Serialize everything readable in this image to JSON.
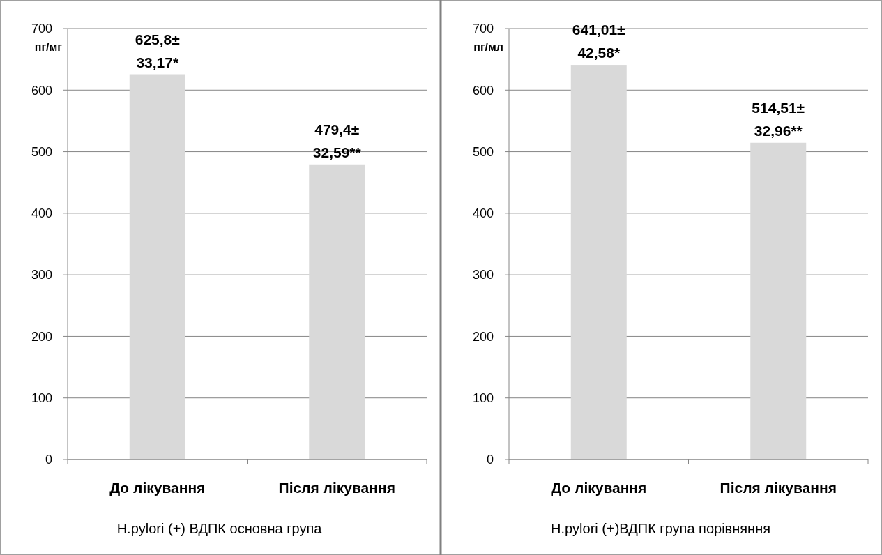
{
  "chart_data": [
    {
      "type": "bar",
      "categories": [
        "До лікування",
        "Після лікування"
      ],
      "values": [
        625.8,
        479.4
      ],
      "color": "#d9d9d9",
      "value_labels": [
        "625,8± 33,17*",
        "479,4± 32,59**"
      ],
      "ylabel": "пг/мг",
      "xlabel": "H.pylori (+) ВДПК основна група",
      "ylim": [
        0,
        700
      ],
      "yticks": [
        0,
        100,
        200,
        300,
        400,
        500,
        600,
        700
      ],
      "grid": "y"
    },
    {
      "type": "bar",
      "categories": [
        "До лікування",
        "Після лікування"
      ],
      "values": [
        641.01,
        514.51
      ],
      "color": "#d9d9d9",
      "value_labels": [
        "641,01± 42,58*",
        "514,51± 32,96**"
      ],
      "ylabel": "пг/мл",
      "xlabel": "H.pylori (+)ВДПК група порівняння",
      "ylim": [
        0,
        700
      ],
      "yticks": [
        0,
        100,
        200,
        300,
        400,
        500,
        600,
        700
      ],
      "grid": "y"
    }
  ]
}
